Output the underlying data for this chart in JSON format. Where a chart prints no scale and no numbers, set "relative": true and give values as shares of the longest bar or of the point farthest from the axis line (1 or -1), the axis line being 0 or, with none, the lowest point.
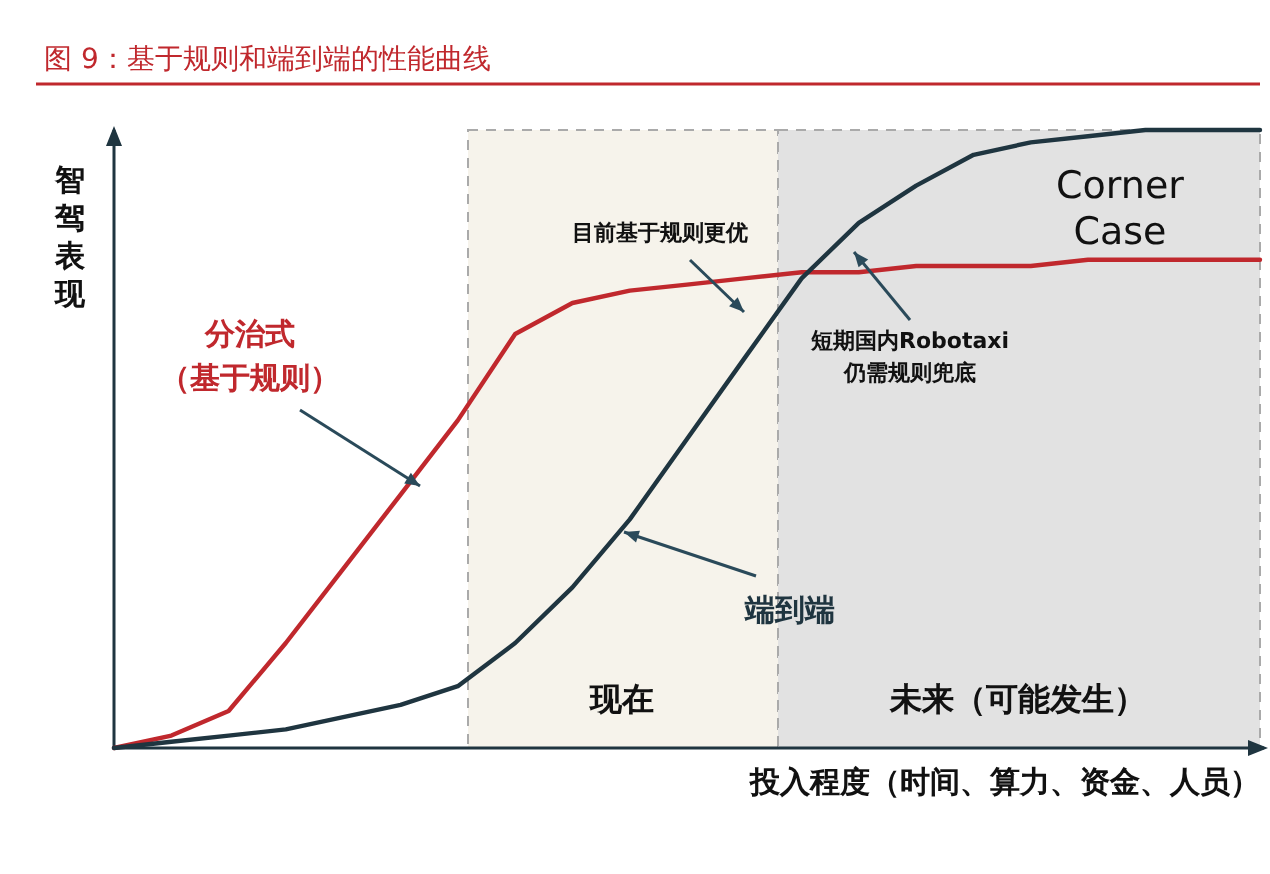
{
  "chart_data": {
    "type": "line",
    "title": "图 9：基于规则和端到端的性能曲线",
    "xlabel": "投入程度（时间、算力、资金、人员）",
    "ylabel": "智驾表现",
    "relative": true,
    "categories": [
      null,
      null,
      null,
      null,
      null,
      null,
      null,
      null,
      null,
      null,
      null,
      null,
      null,
      null,
      null,
      null,
      null,
      null,
      null,
      null,
      null
    ],
    "series": [
      {
        "name": "分治式（基于规则）",
        "color": "#c0282d",
        "values": [
          0,
          0.02,
          0.06,
          0.17,
          0.29,
          0.41,
          0.53,
          0.67,
          0.72,
          0.74,
          0.75,
          0.76,
          0.77,
          0.77,
          0.78,
          0.78,
          0.78,
          0.79,
          0.79,
          0.79,
          0.79
        ]
      },
      {
        "name": "端到端",
        "color": "#1f3540",
        "values": [
          0,
          0.01,
          0.02,
          0.03,
          0.05,
          0.07,
          0.1,
          0.17,
          0.26,
          0.37,
          0.5,
          0.63,
          0.76,
          0.85,
          0.91,
          0.96,
          0.98,
          0.99,
          1,
          1,
          1
        ]
      }
    ],
    "annotations": [
      "目前基于规则更优",
      "短期国内Robotaxi\n仍需规则兜底",
      "Corner\nCase",
      "现在",
      "未来（可能发生）"
    ]
  }
}
